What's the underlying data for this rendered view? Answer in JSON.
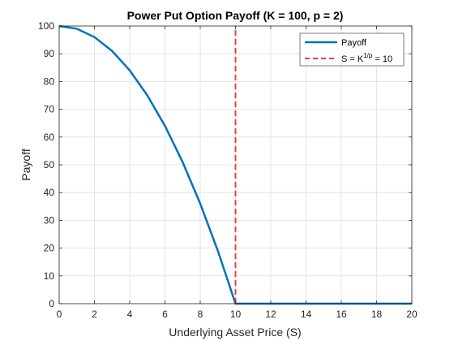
{
  "chart_data": {
    "type": "line",
    "title": "Power Put Option Payoff (K = 100, p = 2)",
    "xlabel": "Underlying Asset Price (S)",
    "ylabel": "Payoff",
    "xlim": [
      0,
      20
    ],
    "ylim": [
      0,
      100
    ],
    "xticks": [
      0,
      2,
      4,
      6,
      8,
      10,
      12,
      14,
      16,
      18,
      20
    ],
    "yticks": [
      0,
      10,
      20,
      30,
      40,
      50,
      60,
      70,
      80,
      90,
      100
    ],
    "grid": true,
    "legend_position": "top-right",
    "series": [
      {
        "name": "Payoff",
        "color": "#0072BD",
        "style": "solid",
        "x": [
          0,
          1,
          2,
          3,
          4,
          5,
          6,
          7,
          8,
          9,
          10,
          11,
          12,
          13,
          14,
          15,
          16,
          17,
          18,
          19,
          20
        ],
        "y": [
          100,
          99,
          96,
          91,
          84,
          75,
          64,
          51,
          36,
          19,
          0,
          0,
          0,
          0,
          0,
          0,
          0,
          0,
          0,
          0,
          0
        ]
      },
      {
        "name": "S = K^{1/p} = 10",
        "color": "#E8423F",
        "style": "dashed",
        "x": [
          10,
          10
        ],
        "y": [
          0,
          100
        ]
      }
    ],
    "legend": {
      "payoff_label": "Payoff",
      "vline_label_prefix": "S = K",
      "vline_label_sup": "1/p",
      "vline_label_suffix": " = 10"
    }
  }
}
